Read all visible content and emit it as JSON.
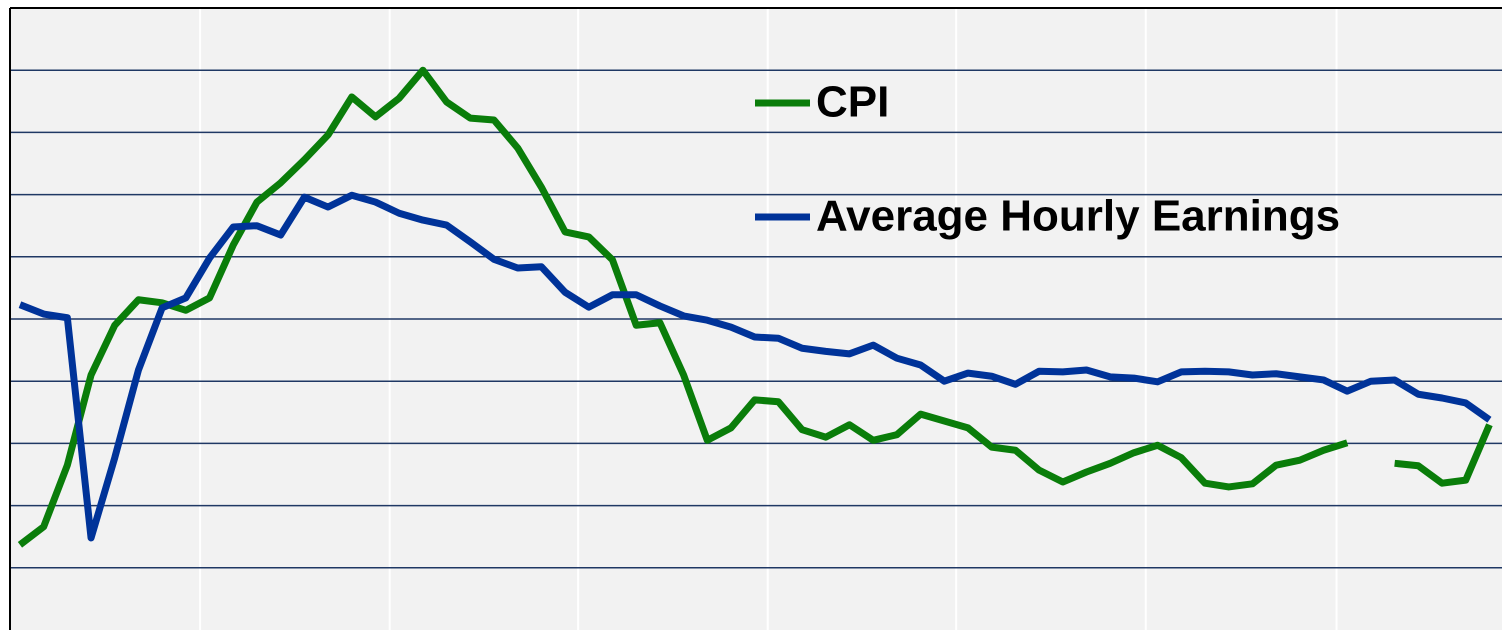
{
  "chart_data": {
    "type": "line",
    "x": [
      0,
      1,
      2,
      3,
      4,
      5,
      6,
      7,
      8,
      9,
      10,
      11,
      12,
      13,
      14,
      15,
      16,
      17,
      18,
      19,
      20,
      21,
      22,
      23,
      24,
      25,
      26,
      27,
      28,
      29,
      30,
      31,
      32,
      33,
      34,
      35,
      36,
      37,
      38,
      39,
      40,
      41,
      42,
      43,
      44,
      45,
      46,
      47,
      48,
      49,
      50,
      51,
      52,
      53,
      54,
      55,
      56,
      57,
      58,
      59,
      60,
      61,
      62
    ],
    "series": [
      {
        "name": "CPI",
        "color": "#0a7d0a",
        "values": [
          1.37,
          1.66,
          2.65,
          4.1,
          4.9,
          5.31,
          5.26,
          5.14,
          5.34,
          6.19,
          6.88,
          7.19,
          7.56,
          7.96,
          8.57,
          8.25,
          8.55,
          9.0,
          8.49,
          8.23,
          8.2,
          7.75,
          7.12,
          6.4,
          6.32,
          5.95,
          4.9,
          4.94,
          4.1,
          3.05,
          3.25,
          3.7,
          3.67,
          3.22,
          3.1,
          3.3,
          3.05,
          3.14,
          3.47,
          3.36,
          3.25,
          2.94,
          2.89,
          2.57,
          2.38,
          2.54,
          2.68,
          2.85,
          2.97,
          2.77,
          2.36,
          2.3,
          2.35,
          2.65,
          2.73,
          2.89,
          3.01,
          null,
          2.68,
          2.64,
          2.36,
          2.41,
          3.3
        ]
      },
      {
        "name": "Average Hourly Earnings",
        "color": "#003399",
        "values": [
          5.23,
          5.08,
          5.02,
          1.48,
          2.77,
          4.18,
          5.18,
          5.34,
          5.98,
          6.48,
          6.5,
          6.35,
          6.96,
          6.8,
          6.99,
          6.88,
          6.7,
          6.59,
          6.51,
          6.24,
          5.96,
          5.82,
          5.84,
          5.43,
          5.19,
          5.39,
          5.39,
          5.21,
          5.05,
          4.98,
          4.87,
          4.71,
          4.69,
          4.53,
          4.48,
          4.44,
          4.58,
          4.37,
          4.26,
          4.0,
          4.13,
          4.08,
          3.95,
          4.16,
          4.15,
          4.18,
          4.07,
          4.05,
          3.99,
          4.15,
          4.16,
          4.15,
          4.1,
          4.12,
          4.07,
          4.02,
          3.84,
          4.0,
          4.02,
          3.79,
          3.73,
          3.65,
          3.38
        ]
      }
    ],
    "xlim": [
      -0.42,
      62.53
    ],
    "xticks": [
      7.6,
      15.6,
      23.55,
      31.55,
      39.5,
      47.5,
      55.55
    ],
    "ylim": [
      0,
      10
    ],
    "yticks": [
      1,
      2,
      3,
      4,
      5,
      6,
      7,
      8,
      9
    ],
    "grid": true
  }
}
